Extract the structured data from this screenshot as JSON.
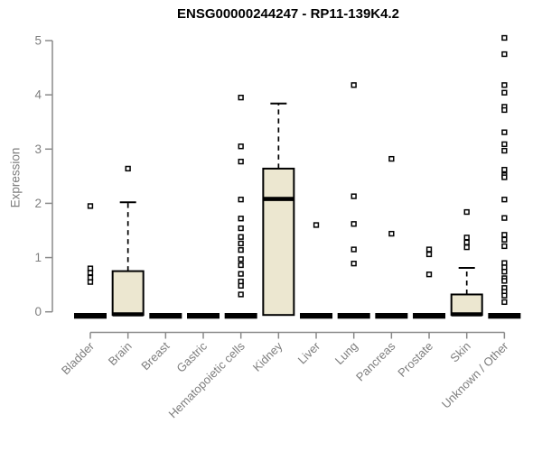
{
  "chart_data": {
    "type": "boxplot",
    "title": "ENSG00000244247 - RP11-139K4.2",
    "ylabel": "Expression",
    "xlabel": "",
    "ylim": [
      0,
      5
    ],
    "yticks": [
      0,
      1,
      2,
      3,
      4,
      5
    ],
    "grid": false,
    "legend": false,
    "categories": [
      "Bladder",
      "Brain",
      "Breast",
      "Gastric",
      "Hematopoietic cells",
      "Kidney",
      "Liver",
      "Lung",
      "Pancreas",
      "Prostate",
      "Skin",
      "Unknown / Other"
    ],
    "boxes": [
      {
        "category": "Bladder",
        "q1": 0,
        "median": 0,
        "q3": 0,
        "whisker_low": 0,
        "whisker_high": 0,
        "outliers": [
          1.95,
          0.8,
          0.72,
          0.63,
          0.55
        ]
      },
      {
        "category": "Brain",
        "q1": 0,
        "median": 0,
        "q3": 0.75,
        "whisker_low": 0,
        "whisker_high": 2.02,
        "outliers": [
          2.64
        ]
      },
      {
        "category": "Breast",
        "q1": 0,
        "median": 0,
        "q3": 0,
        "whisker_low": 0,
        "whisker_high": 0,
        "outliers": []
      },
      {
        "category": "Gastric",
        "q1": 0,
        "median": 0,
        "q3": 0,
        "whisker_low": 0,
        "whisker_high": 0,
        "outliers": []
      },
      {
        "category": "Hematopoietic cells",
        "q1": 0,
        "median": 0,
        "q3": 0,
        "whisker_low": 0,
        "whisker_high": 0,
        "outliers": [
          3.95,
          3.05,
          2.77,
          2.07,
          1.72,
          1.54,
          1.38,
          1.26,
          1.14,
          0.97,
          0.86,
          0.7,
          0.56,
          0.48,
          0.32
        ]
      },
      {
        "category": "Kidney",
        "q1": 0,
        "median": 2.08,
        "q3": 2.64,
        "whisker_low": 0,
        "whisker_high": 3.84,
        "outliers": []
      },
      {
        "category": "Liver",
        "q1": 0,
        "median": 0,
        "q3": 0,
        "whisker_low": 0,
        "whisker_high": 0,
        "outliers": [
          1.6
        ]
      },
      {
        "category": "Lung",
        "q1": 0,
        "median": 0,
        "q3": 0,
        "whisker_low": 0,
        "whisker_high": 0,
        "outliers": [
          4.18,
          2.13,
          1.62,
          1.15,
          0.89
        ]
      },
      {
        "category": "Pancreas",
        "q1": 0,
        "median": 0,
        "q3": 0,
        "whisker_low": 0,
        "whisker_high": 0,
        "outliers": [
          2.82,
          1.44
        ]
      },
      {
        "category": "Prostate",
        "q1": 0,
        "median": 0,
        "q3": 0,
        "whisker_low": 0,
        "whisker_high": 0,
        "outliers": [
          1.15,
          1.06,
          0.69
        ]
      },
      {
        "category": "Skin",
        "q1": 0,
        "median": 0,
        "q3": 0.32,
        "whisker_low": 0,
        "whisker_high": 0.81,
        "outliers": [
          1.84,
          1.37,
          1.28,
          1.19
        ]
      },
      {
        "category": "Unknown / Other",
        "q1": 0,
        "median": 0,
        "q3": 0,
        "whisker_low": 0,
        "whisker_high": 0,
        "outliers": [
          5.05,
          4.75,
          4.18,
          4.04,
          3.78,
          3.72,
          3.31,
          3.09,
          2.97,
          2.62,
          2.52,
          2.48,
          2.07,
          1.73,
          1.42,
          1.33,
          1.21,
          0.9,
          0.82,
          0.74,
          0.62,
          0.57,
          0.44,
          0.37,
          0.3,
          0.18
        ]
      }
    ],
    "colors": {
      "box_fill": "#ece7d0",
      "box_stroke": "#000000",
      "median": "#000000",
      "axis": "#8a8a8a",
      "tick_text": "#7e7e7e",
      "title": "#000000",
      "outlier_fill": "#ffffff"
    }
  }
}
